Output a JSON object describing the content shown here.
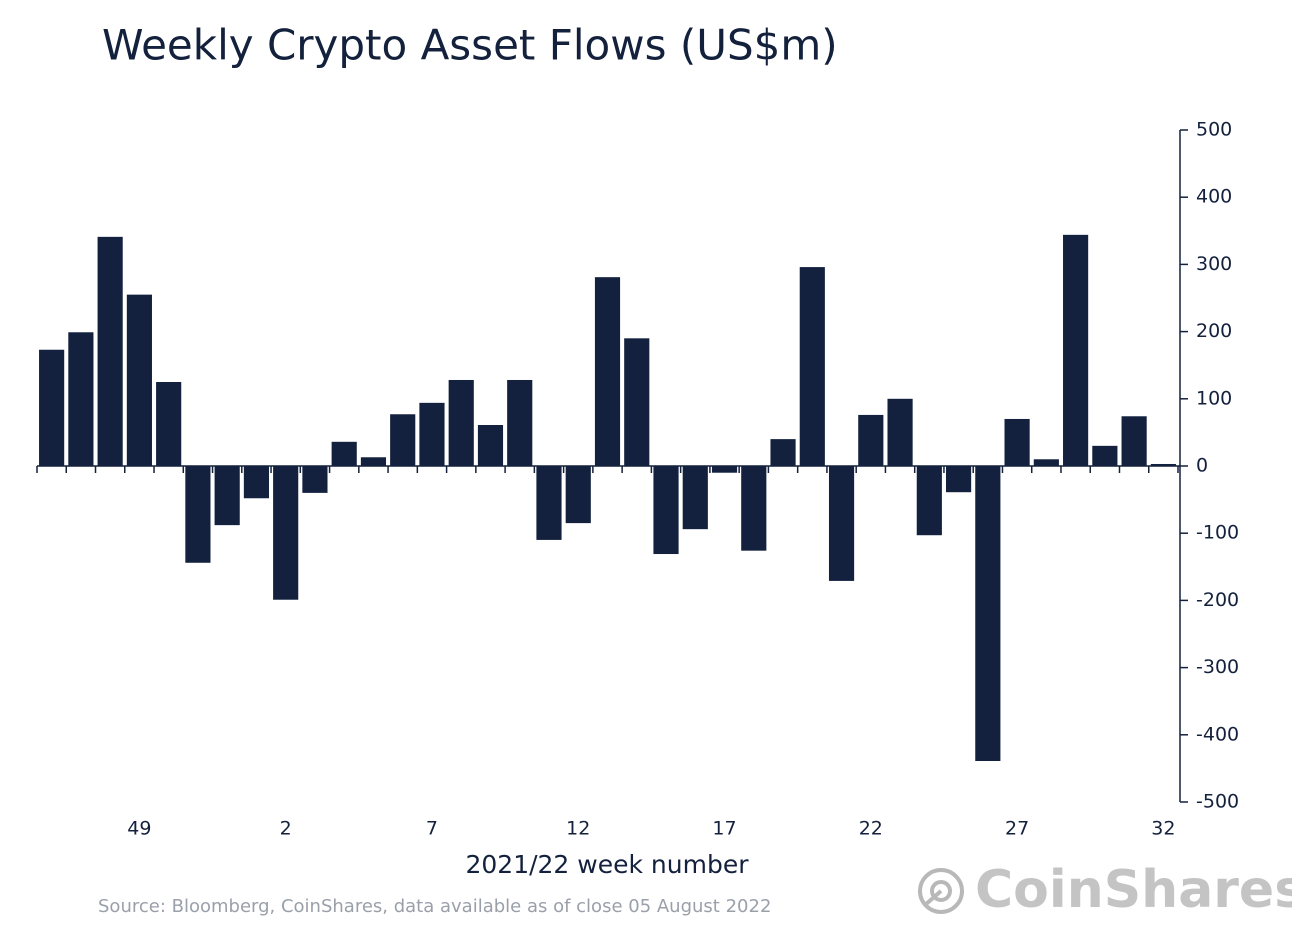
{
  "chart_data": {
    "type": "bar",
    "title": "Weekly Crypto Asset Flows (US$m)",
    "x_label": "2021/22 week number",
    "source": "Source: Bloomberg, CoinShares, data available as of close 05 August 2022",
    "logo": "CoinShares",
    "color": "#13213f",
    "categories": [
      null,
      null,
      null,
      "49",
      null,
      null,
      null,
      null,
      "2",
      null,
      null,
      null,
      null,
      "7",
      null,
      null,
      null,
      null,
      "12",
      null,
      null,
      null,
      null,
      "17",
      null,
      null,
      null,
      null,
      "22",
      null,
      null,
      null,
      null,
      "27",
      null,
      null,
      null,
      null,
      "32"
    ],
    "values": [
      173,
      199,
      341,
      255,
      125,
      -144,
      -88,
      -48,
      -199,
      -40,
      36,
      13,
      77,
      94,
      128,
      61,
      128,
      -110,
      -85,
      281,
      190,
      -131,
      -94,
      -10,
      -126,
      40,
      296,
      -171,
      76,
      100,
      -103,
      -39,
      -439,
      70,
      10,
      344,
      30,
      74,
      3
    ],
    "ylim": [
      -500,
      500
    ],
    "yticks": [
      -500,
      -400,
      -300,
      -200,
      -100,
      0,
      100,
      200,
      300,
      400,
      500
    ]
  }
}
